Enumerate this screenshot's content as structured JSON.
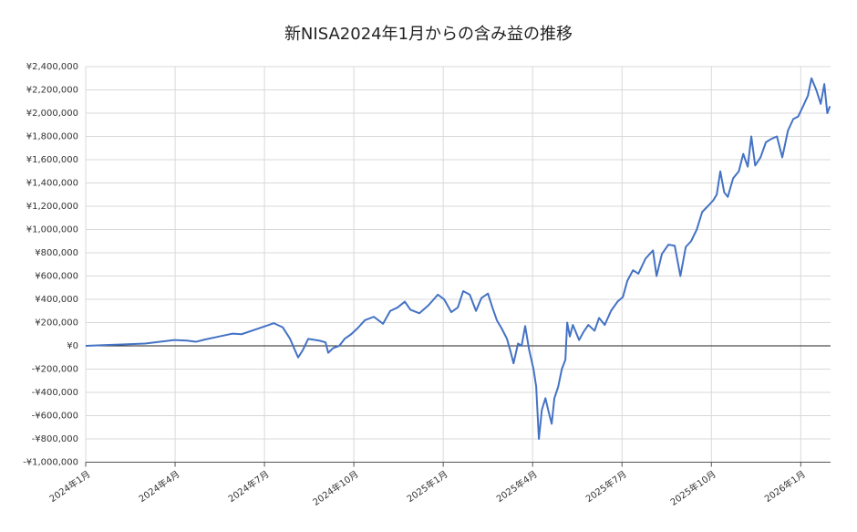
{
  "chart_data": {
    "type": "line",
    "title": "新NISA2024年1月からの含み益の推移",
    "x": [
      0,
      0.98,
      1.99,
      2.97,
      3.4,
      3.7,
      4.01,
      4.47,
      4.93,
      5.23,
      5.69,
      6.15,
      6.31,
      6.61,
      6.86,
      7.01,
      7.13,
      7.28,
      7.47,
      7.84,
      8.05,
      8.14,
      8.3,
      8.51,
      8.69,
      8.91,
      9.12,
      9.37,
      9.67,
      9.98,
      10.22,
      10.47,
      10.71,
      10.9,
      11.2,
      11.51,
      11.82,
      12.03,
      12.27,
      12.49,
      12.67,
      12.89,
      13.1,
      13.28,
      13.5,
      13.65,
      13.8,
      13.96,
      14.14,
      14.26,
      14.36,
      14.51,
      14.63,
      14.75,
      14.88,
      15.03,
      15.12,
      15.21,
      15.31,
      15.43,
      15.55,
      15.64,
      15.73,
      15.86,
      15.98,
      16.1,
      16.16,
      16.25,
      16.35,
      16.56,
      16.71,
      16.87,
      17.08,
      17.23,
      17.42,
      17.63,
      17.85,
      18.03,
      18.18,
      18.37,
      18.55,
      18.79,
      19.04,
      19.16,
      19.34,
      19.56,
      19.77,
      19.96,
      20.14,
      20.32,
      20.51,
      20.69,
      20.88,
      21.06,
      21.18,
      21.3,
      21.43,
      21.55,
      21.73,
      21.92,
      22.07,
      22.22,
      22.34,
      22.47,
      22.65,
      22.83,
      23.02,
      23.2,
      23.38,
      23.57,
      23.75,
      23.91,
      24.06,
      24.24,
      24.36,
      24.52,
      24.67,
      24.79,
      24.89,
      24.98
    ],
    "series": [
      {
        "name": "含み益",
        "color": "#4472c4",
        "values": [
          0,
          10000,
          20000,
          50000,
          45000,
          35000,
          55000,
          80000,
          105000,
          100000,
          140000,
          180000,
          195000,
          160000,
          60000,
          -30000,
          -100000,
          -40000,
          60000,
          45000,
          30000,
          -60000,
          -20000,
          0,
          60000,
          100000,
          150000,
          220000,
          250000,
          190000,
          300000,
          330000,
          380000,
          310000,
          280000,
          350000,
          440000,
          400000,
          290000,
          330000,
          470000,
          440000,
          300000,
          410000,
          450000,
          330000,
          220000,
          150000,
          60000,
          -50000,
          -150000,
          20000,
          0,
          170000,
          -30000,
          -200000,
          -350000,
          -800000,
          -550000,
          -450000,
          -580000,
          -670000,
          -450000,
          -350000,
          -200000,
          -120000,
          200000,
          80000,
          180000,
          50000,
          120000,
          180000,
          130000,
          240000,
          180000,
          300000,
          380000,
          420000,
          560000,
          650000,
          620000,
          750000,
          820000,
          600000,
          790000,
          870000,
          860000,
          600000,
          850000,
          900000,
          1000000,
          1150000,
          1200000,
          1250000,
          1300000,
          1500000,
          1320000,
          1280000,
          1440000,
          1500000,
          1650000,
          1540000,
          1800000,
          1550000,
          1620000,
          1750000,
          1780000,
          1800000,
          1620000,
          1850000,
          1950000,
          1970000,
          2050000,
          2150000,
          2300000,
          2200000,
          2080000,
          2250000,
          2000000,
          2060000
        ]
      }
    ],
    "xlim": [
      0,
      25
    ],
    "xticks": [
      {
        "value": 0,
        "label": "2024年1月"
      },
      {
        "value": 3,
        "label": "2024年4月"
      },
      {
        "value": 6,
        "label": "2024年7月"
      },
      {
        "value": 9,
        "label": "2024年10月"
      },
      {
        "value": 12,
        "label": "2025年1月"
      },
      {
        "value": 15,
        "label": "2025年4月"
      },
      {
        "value": 18,
        "label": "2025年7月"
      },
      {
        "value": 21,
        "label": "2025年10月"
      },
      {
        "value": 24,
        "label": "2026年1月"
      }
    ],
    "ylim": [
      -1000000,
      2400000
    ],
    "yticks": [
      {
        "value": -1000000,
        "label": "-¥1,000,000"
      },
      {
        "value": -800000,
        "label": "-¥800,000"
      },
      {
        "value": -600000,
        "label": "-¥600,000"
      },
      {
        "value": -400000,
        "label": "-¥400,000"
      },
      {
        "value": -200000,
        "label": "-¥200,000"
      },
      {
        "value": 0,
        "label": "¥0"
      },
      {
        "value": 200000,
        "label": "¥200,000"
      },
      {
        "value": 400000,
        "label": "¥400,000"
      },
      {
        "value": 600000,
        "label": "¥600,000"
      },
      {
        "value": 800000,
        "label": "¥800,000"
      },
      {
        "value": 1000000,
        "label": "¥1,000,000"
      },
      {
        "value": 1200000,
        "label": "¥1,200,000"
      },
      {
        "value": 1400000,
        "label": "¥1,400,000"
      },
      {
        "value": 1600000,
        "label": "¥1,600,000"
      },
      {
        "value": 1800000,
        "label": "¥1,800,000"
      },
      {
        "value": 2000000,
        "label": "¥2,000,000"
      },
      {
        "value": 2200000,
        "label": "¥2,200,000"
      },
      {
        "value": 2400000,
        "label": "¥2,400,000"
      }
    ],
    "grid": true
  }
}
